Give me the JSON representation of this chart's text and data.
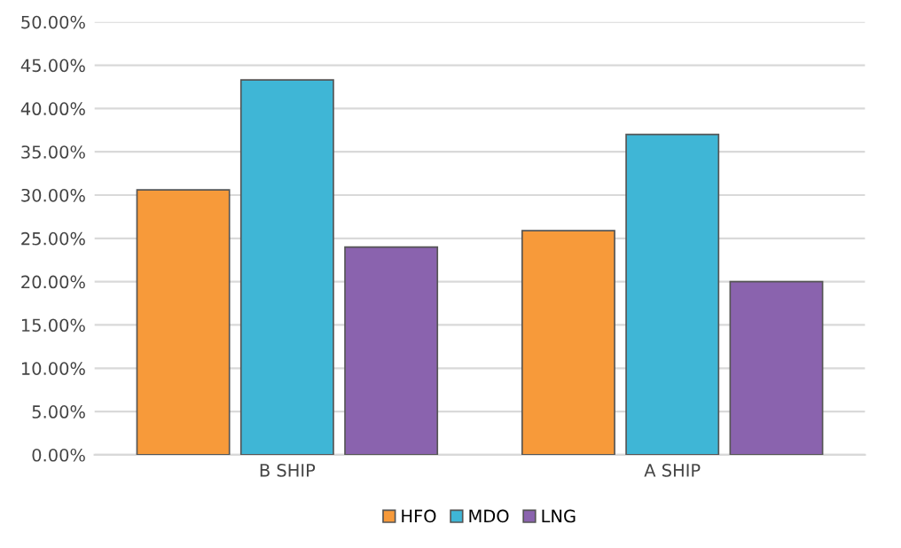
{
  "chart_data": {
    "type": "bar",
    "categories": [
      "B SHIP",
      "A SHIP"
    ],
    "series": [
      {
        "name": "HFO",
        "color": "#f79a3a",
        "values": [
          30.6,
          25.9
        ]
      },
      {
        "name": "MDO",
        "color": "#3fb6d6",
        "values": [
          43.3,
          37.0
        ]
      },
      {
        "name": "LNG",
        "color": "#8a63ae",
        "values": [
          24.0,
          20.0
        ]
      }
    ],
    "ylim": [
      0,
      50
    ],
    "yticks": [
      {
        "value": 0,
        "label": "0.00%"
      },
      {
        "value": 5,
        "label": "5.00%"
      },
      {
        "value": 10,
        "label": "10.00%"
      },
      {
        "value": 15,
        "label": "15.00%"
      },
      {
        "value": 20,
        "label": "20.00%"
      },
      {
        "value": 25,
        "label": "25.00%"
      },
      {
        "value": 30,
        "label": "30.00%"
      },
      {
        "value": 35,
        "label": "35.00%"
      },
      {
        "value": 40,
        "label": "40.00%"
      },
      {
        "value": 45,
        "label": "45.00%"
      },
      {
        "value": 50,
        "label": "50.00%"
      }
    ],
    "grid": "y",
    "legend": "bottom"
  }
}
